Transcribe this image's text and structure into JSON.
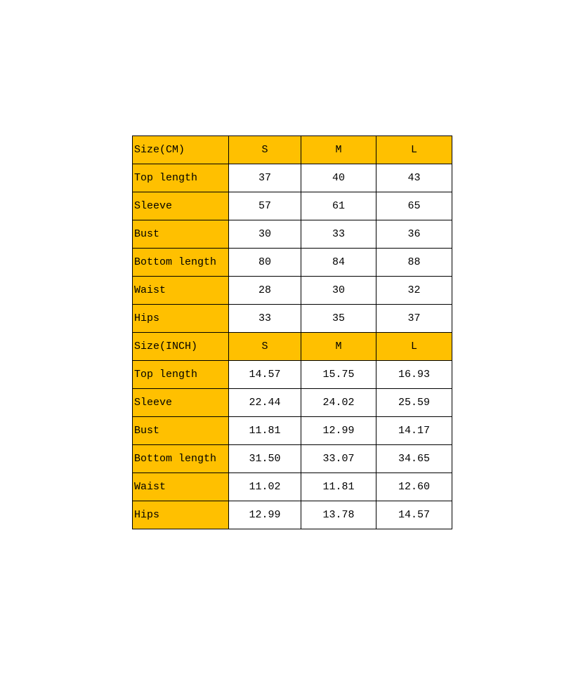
{
  "accent_color": "#FFC000",
  "sections": [
    {
      "header": [
        "Size(CM)",
        "S",
        "M",
        "L"
      ],
      "rows": [
        [
          "Top length",
          "37",
          "40",
          "43"
        ],
        [
          "Sleeve",
          "57",
          "61",
          "65"
        ],
        [
          "Bust",
          "30",
          "33",
          "36"
        ],
        [
          "Bottom length",
          "80",
          "84",
          "88"
        ],
        [
          "Waist",
          "28",
          "30",
          "32"
        ],
        [
          "Hips",
          "33",
          "35",
          "37"
        ]
      ]
    },
    {
      "header": [
        "Size(INCH)",
        "S",
        "M",
        "L"
      ],
      "rows": [
        [
          "Top length",
          "14.57",
          "15.75",
          "16.93"
        ],
        [
          "Sleeve",
          "22.44",
          "24.02",
          "25.59"
        ],
        [
          "Bust",
          "11.81",
          "12.99",
          "14.17"
        ],
        [
          "Bottom length",
          "31.50",
          "33.07",
          "34.65"
        ],
        [
          "Waist",
          "11.02",
          "11.81",
          "12.60"
        ],
        [
          "Hips",
          "12.99",
          "13.78",
          "14.57"
        ]
      ]
    }
  ]
}
